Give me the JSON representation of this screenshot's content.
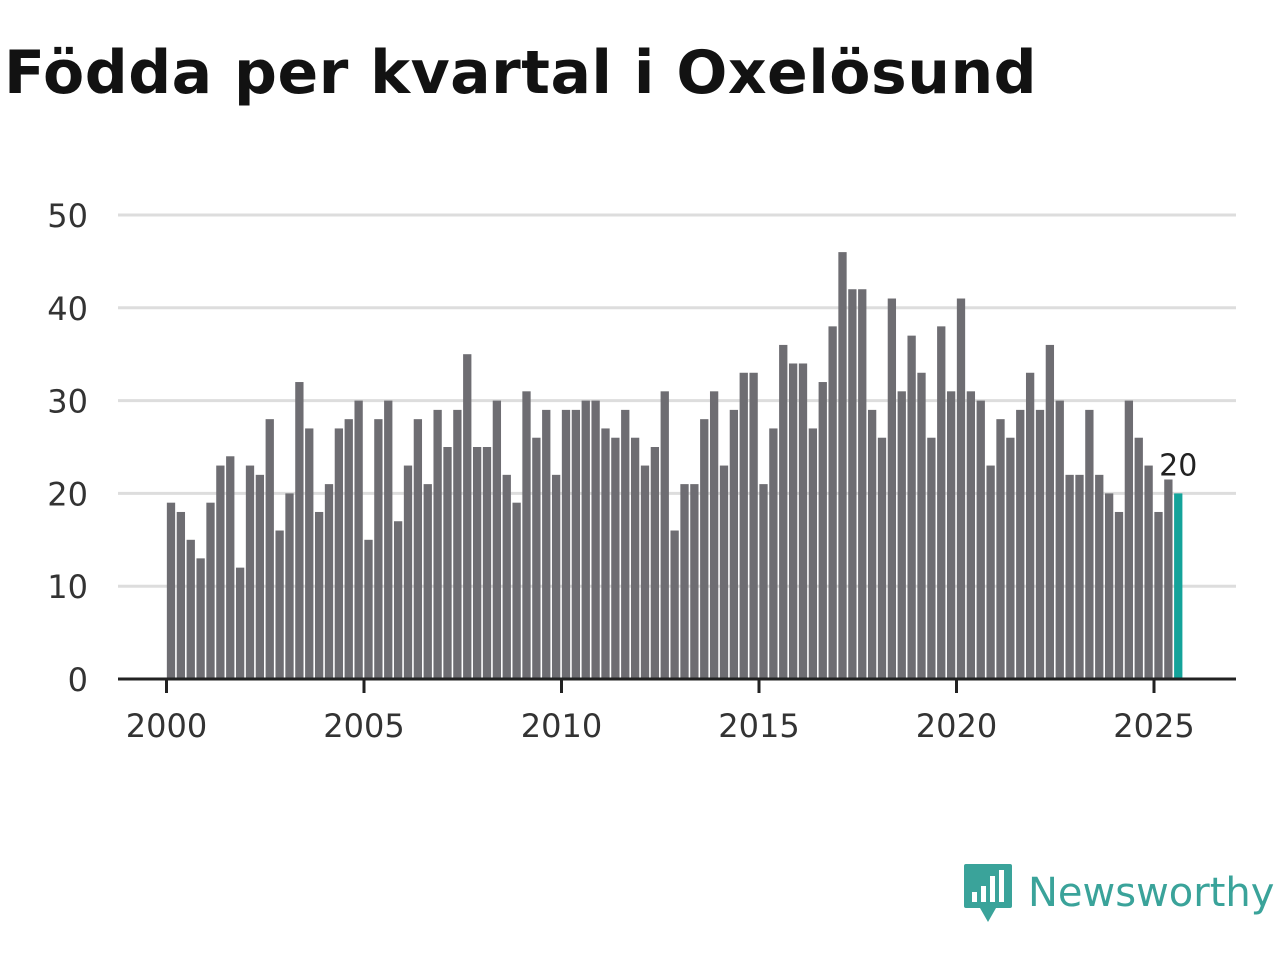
{
  "brand": {
    "name": "Newsworthy",
    "icon": "newsworthy-logo-icon",
    "color": "#3aa39a"
  },
  "chart_data": {
    "type": "bar",
    "title": "Födda per kvartal i Oxelösund",
    "xlabel": "",
    "ylabel": "",
    "ylim": [
      0,
      50
    ],
    "yticks": [
      0,
      10,
      20,
      30,
      40,
      50
    ],
    "xticks": [
      2000,
      2005,
      2010,
      2015,
      2020,
      2025
    ],
    "bar_color": "#6e6d72",
    "highlight_color": "#14a39a",
    "highlight_label": "20",
    "series": [
      {
        "name": "Födda",
        "start_year": 2000,
        "values": [
          19,
          18,
          15,
          13,
          19,
          23,
          24,
          12,
          23,
          22,
          28,
          16,
          20,
          32,
          27,
          18,
          21,
          27,
          28,
          30,
          15,
          28,
          30,
          17,
          23,
          28,
          21,
          29,
          25,
          29,
          35,
          25,
          25,
          30,
          22,
          19,
          31,
          26,
          29,
          22,
          29,
          29,
          30,
          30,
          27,
          26,
          29,
          26,
          23,
          25,
          31,
          16,
          21,
          21,
          28,
          31,
          23,
          29,
          33,
          33,
          21,
          27,
          36,
          34,
          34,
          27,
          32,
          38,
          46,
          42,
          42,
          29,
          26,
          41,
          31,
          37,
          33,
          26,
          38,
          31,
          41,
          31,
          30,
          23,
          28,
          26,
          29,
          33,
          29,
          36,
          30,
          22,
          22,
          29,
          22,
          20,
          18,
          30,
          26,
          23,
          18,
          21.5,
          20
        ]
      }
    ]
  }
}
